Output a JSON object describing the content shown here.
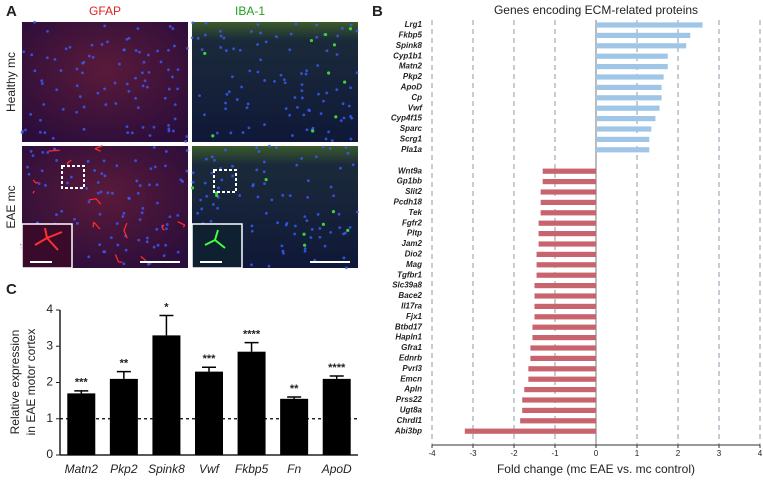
{
  "figure": {
    "panel_a": {
      "label": "A",
      "columns": [
        "GFAP",
        "IBA-1"
      ],
      "rows": [
        "Healthy mc",
        "EAE mc"
      ]
    }
  },
  "chart_data": [
    {
      "type": "hbar",
      "label": "B",
      "title": "Genes encoding ECM-related proteins",
      "xlabel": "Fold change (mc EAE vs. mc control)",
      "categories": [
        "Lrg1",
        "Fkbp5",
        "Spink8",
        "Cyp1b1",
        "Matn2",
        "Pkp2",
        "ApoD",
        "Cp",
        "Vwf",
        "Cyp4f15",
        "Sparc",
        "Scrg1",
        "Pla1a",
        "Wnt9a",
        "Gp1bb",
        "Slit2",
        "Pcdh18",
        "Tek",
        "Fgfr2",
        "Pltp",
        "Jam2",
        "Dio2",
        "Mag",
        "Tgfbr1",
        "Slc39a8",
        "Bace2",
        "Il17ra",
        "Fjx1",
        "Btbd17",
        "Hapln1",
        "Gfra1",
        "Ednrb",
        "Pvrl3",
        "Emcn",
        "Apln",
        "Prss22",
        "Ugt8a",
        "Chrdl1",
        "Abi3bp"
      ],
      "values": [
        2.6,
        2.3,
        2.2,
        1.75,
        1.75,
        1.65,
        1.6,
        1.6,
        1.55,
        1.45,
        1.35,
        1.3,
        1.3,
        -1.3,
        -1.3,
        -1.35,
        -1.35,
        -1.35,
        -1.4,
        -1.4,
        -1.4,
        -1.45,
        -1.45,
        -1.45,
        -1.5,
        -1.5,
        -1.5,
        -1.5,
        -1.55,
        -1.55,
        -1.6,
        -1.6,
        -1.65,
        -1.65,
        -1.75,
        -1.8,
        -1.8,
        -1.85,
        -3.2
      ],
      "positive_color": "#9fc6e6",
      "negative_color": "#c8646e",
      "xlim": [
        -4,
        4
      ],
      "xticks": [
        -4,
        -3,
        -2,
        -1,
        0,
        1,
        2,
        3,
        4
      ],
      "grid": true
    },
    {
      "type": "bar",
      "label": "C",
      "ylabel": [
        "Relative expression",
        "in EAE motor cortex"
      ],
      "categories": [
        "Matn2",
        "Pkp2",
        "Spink8",
        "Vwf",
        "Fkbp5",
        "Fn",
        "ApoD"
      ],
      "values": [
        1.7,
        2.1,
        3.3,
        2.3,
        2.85,
        1.55,
        2.1
      ],
      "errors": [
        0.07,
        0.2,
        0.55,
        0.12,
        0.25,
        0.05,
        0.08
      ],
      "annotations": [
        "***",
        "**",
        "*",
        "***",
        "****",
        "**",
        "****"
      ],
      "color": "#000000",
      "ylim": [
        0,
        4
      ],
      "yticks": [
        0,
        1,
        2,
        3,
        4
      ],
      "reference_line": 1
    }
  ]
}
